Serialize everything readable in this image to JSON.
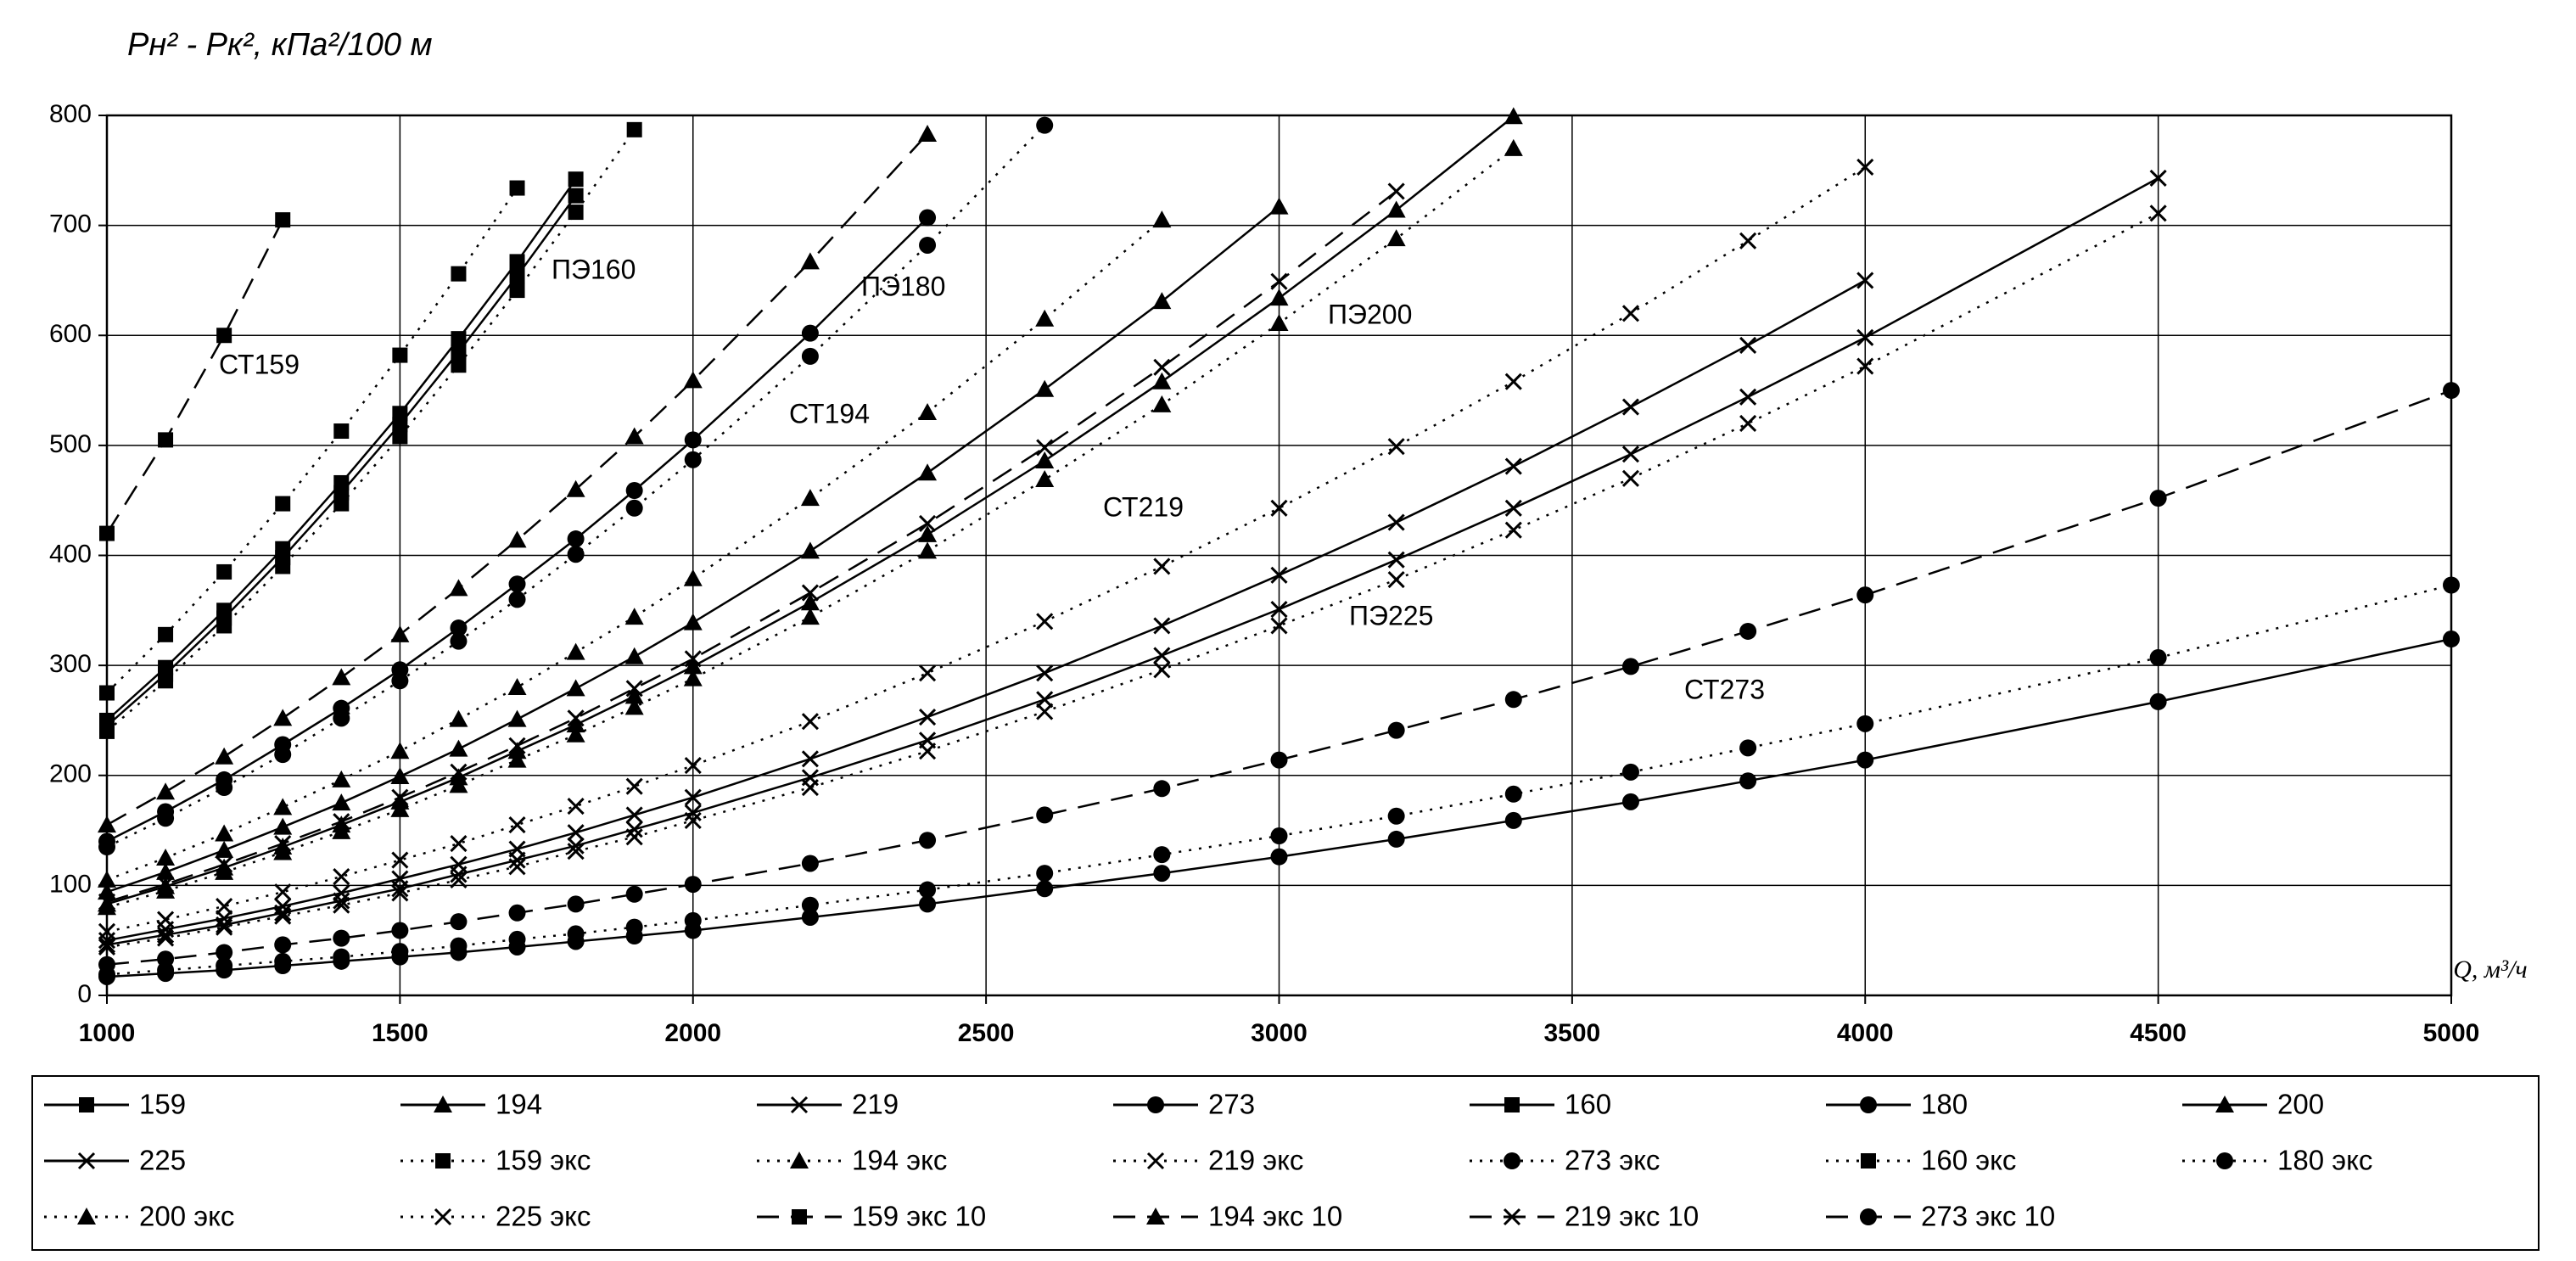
{
  "chart_data": {
    "type": "line",
    "ylabel": "Pн² - Pк², кПа²/100 м",
    "xlabel": "Q, м³/ч",
    "x": [
      1000,
      1100,
      1200,
      1300,
      1400,
      1500,
      1600,
      1700,
      1800,
      1900,
      2000,
      2200,
      2400,
      2600,
      2800,
      3000,
      3200,
      3400,
      3600,
      3800,
      4000,
      4500,
      5000
    ],
    "xlim": [
      1000,
      5000
    ],
    "xticks": [
      1000,
      1500,
      2000,
      2500,
      3000,
      3500,
      4000,
      4500,
      5000
    ],
    "ylim": [
      0,
      800
    ],
    "yticks": [
      0,
      100,
      200,
      300,
      400,
      500,
      600,
      700,
      800
    ],
    "grid": true,
    "annotations": [
      "СТ159",
      "ПЭ160",
      "ПЭ180",
      "СТ194",
      "ПЭ200",
      "СТ219",
      "ПЭ225",
      "СТ273"
    ],
    "series": [
      {
        "name": "159",
        "color": "#000000",
        "dash": "solid",
        "marker": "square",
        "values": [
          250,
          298,
          350,
          406,
          466,
          529,
          597,
          667,
          742,
          null,
          null,
          null,
          null,
          null,
          null,
          null,
          null,
          null,
          null,
          null,
          null,
          null,
          null
        ]
      },
      {
        "name": "194",
        "color": "#000000",
        "dash": "solid",
        "marker": "triangle",
        "values": [
          94,
          112,
          132,
          153,
          175,
          199,
          224,
          251,
          279,
          308,
          339,
          404,
          475,
          551,
          631,
          717,
          null,
          null,
          null,
          null,
          null,
          null,
          null
        ]
      },
      {
        "name": "219",
        "color": "#000000",
        "dash": "solid",
        "marker": "x",
        "values": [
          50,
          60,
          70,
          81,
          93,
          106,
          119,
          133,
          148,
          164,
          180,
          215,
          253,
          293,
          336,
          382,
          430,
          481,
          535,
          591,
          650,
          null,
          null
        ]
      },
      {
        "name": "273",
        "color": "#000000",
        "dash": "solid",
        "marker": "circle",
        "values": [
          17,
          20,
          23,
          27,
          31,
          35,
          39,
          44,
          49,
          54,
          59,
          71,
          83,
          97,
          111,
          126,
          142,
          159,
          176,
          195,
          214,
          267,
          324
        ]
      },
      {
        "name": "160",
        "color": "#000000",
        "dash": "solid",
        "marker": "square",
        "values": [
          245,
          292,
          343,
          398,
          457,
          519,
          585,
          654,
          727,
          null,
          null,
          null,
          null,
          null,
          null,
          null,
          null,
          null,
          null,
          null,
          null,
          null,
          null
        ]
      },
      {
        "name": "180",
        "color": "#000000",
        "dash": "solid",
        "marker": "circle",
        "values": [
          140,
          167,
          196,
          228,
          261,
          296,
          334,
          374,
          415,
          459,
          505,
          602,
          707,
          null,
          null,
          null,
          null,
          null,
          null,
          null,
          null,
          null,
          null
        ]
      },
      {
        "name": "200",
        "color": "#000000",
        "dash": "solid",
        "marker": "triangle",
        "values": [
          83,
          99,
          116,
          135,
          155,
          176,
          198,
          222,
          246,
          272,
          299,
          357,
          419,
          486,
          558,
          634,
          714,
          799,
          null,
          null,
          null,
          null,
          null
        ]
      },
      {
        "name": "225",
        "color": "#000000",
        "dash": "solid",
        "marker": "x",
        "values": [
          46,
          55,
          64,
          75,
          86,
          97,
          110,
          123,
          136,
          151,
          166,
          198,
          232,
          269,
          309,
          351,
          396,
          443,
          492,
          544,
          598,
          743,
          null
        ]
      },
      {
        "name": "159 экс",
        "color": "#000000",
        "dash": "dotted",
        "marker": "square",
        "values": [
          275,
          328,
          385,
          447,
          513,
          582,
          656,
          734,
          null,
          null,
          null,
          null,
          null,
          null,
          null,
          null,
          null,
          null,
          null,
          null,
          null,
          null,
          null
        ]
      },
      {
        "name": "194 экс",
        "color": "#000000",
        "dash": "dotted",
        "marker": "triangle",
        "values": [
          105,
          125,
          147,
          171,
          196,
          222,
          251,
          280,
          312,
          344,
          379,
          452,
          530,
          615,
          705,
          null,
          null,
          null,
          null,
          null,
          null,
          null,
          null
        ]
      },
      {
        "name": "219 экс",
        "color": "#000000",
        "dash": "dotted",
        "marker": "x",
        "values": [
          58,
          69,
          81,
          94,
          108,
          123,
          138,
          155,
          172,
          190,
          209,
          249,
          293,
          340,
          390,
          443,
          499,
          558,
          620,
          686,
          753,
          null,
          null
        ]
      },
      {
        "name": "273 экс",
        "color": "#000000",
        "dash": "dotted",
        "marker": "circle",
        "values": [
          19,
          23,
          27,
          31,
          35,
          40,
          45,
          51,
          56,
          62,
          68,
          82,
          96,
          111,
          128,
          145,
          163,
          183,
          203,
          225,
          247,
          307,
          373
        ]
      },
      {
        "name": "160 экс",
        "color": "#000000",
        "dash": "dotted",
        "marker": "square",
        "values": [
          240,
          286,
          336,
          390,
          447,
          508,
          573,
          641,
          712,
          787,
          null,
          null,
          null,
          null,
          null,
          null,
          null,
          null,
          null,
          null,
          null,
          null,
          null
        ]
      },
      {
        "name": "180 экс",
        "color": "#000000",
        "dash": "dotted",
        "marker": "circle",
        "values": [
          135,
          161,
          189,
          219,
          252,
          286,
          322,
          360,
          401,
          443,
          487,
          581,
          682,
          791,
          null,
          null,
          null,
          null,
          null,
          null,
          null,
          null,
          null
        ]
      },
      {
        "name": "200 экс",
        "color": "#000000",
        "dash": "dotted",
        "marker": "triangle",
        "values": [
          80,
          95,
          112,
          130,
          149,
          169,
          191,
          214,
          237,
          262,
          288,
          344,
          404,
          469,
          537,
          611,
          688,
          770,
          null,
          null,
          null,
          null,
          null
        ]
      },
      {
        "name": "225 экс",
        "color": "#000000",
        "dash": "dotted",
        "marker": "x",
        "values": [
          44,
          52,
          62,
          72,
          82,
          93,
          105,
          117,
          131,
          144,
          159,
          189,
          222,
          258,
          296,
          336,
          378,
          423,
          470,
          520,
          572,
          711,
          null
        ]
      },
      {
        "name": "159 экс 10",
        "color": "#000000",
        "dash": "dashed",
        "marker": "square",
        "values": [
          420,
          505,
          600,
          705,
          null,
          null,
          null,
          null,
          null,
          null,
          null,
          null,
          null,
          null,
          null,
          null,
          null,
          null,
          null,
          null,
          null,
          null,
          null
        ]
      },
      {
        "name": "194 экс 10",
        "color": "#000000",
        "dash": "dashed",
        "marker": "triangle",
        "values": [
          155,
          185,
          217,
          252,
          289,
          328,
          370,
          414,
          460,
          508,
          559,
          667,
          783,
          null,
          null,
          null,
          null,
          null,
          null,
          null,
          null,
          null,
          null
        ]
      },
      {
        "name": "219 экс 10",
        "color": "#000000",
        "dash": "dashed",
        "marker": "x",
        "values": [
          85,
          101,
          119,
          138,
          158,
          180,
          203,
          227,
          252,
          279,
          306,
          366,
          429,
          498,
          571,
          649,
          731,
          null,
          null,
          null,
          null,
          null,
          null
        ]
      },
      {
        "name": "273 экс 10",
        "color": "#000000",
        "dash": "dashed",
        "marker": "circle",
        "values": [
          28,
          33,
          39,
          46,
          52,
          59,
          67,
          75,
          83,
          92,
          101,
          120,
          141,
          164,
          188,
          214,
          241,
          269,
          299,
          331,
          364,
          452,
          550
        ]
      }
    ]
  }
}
